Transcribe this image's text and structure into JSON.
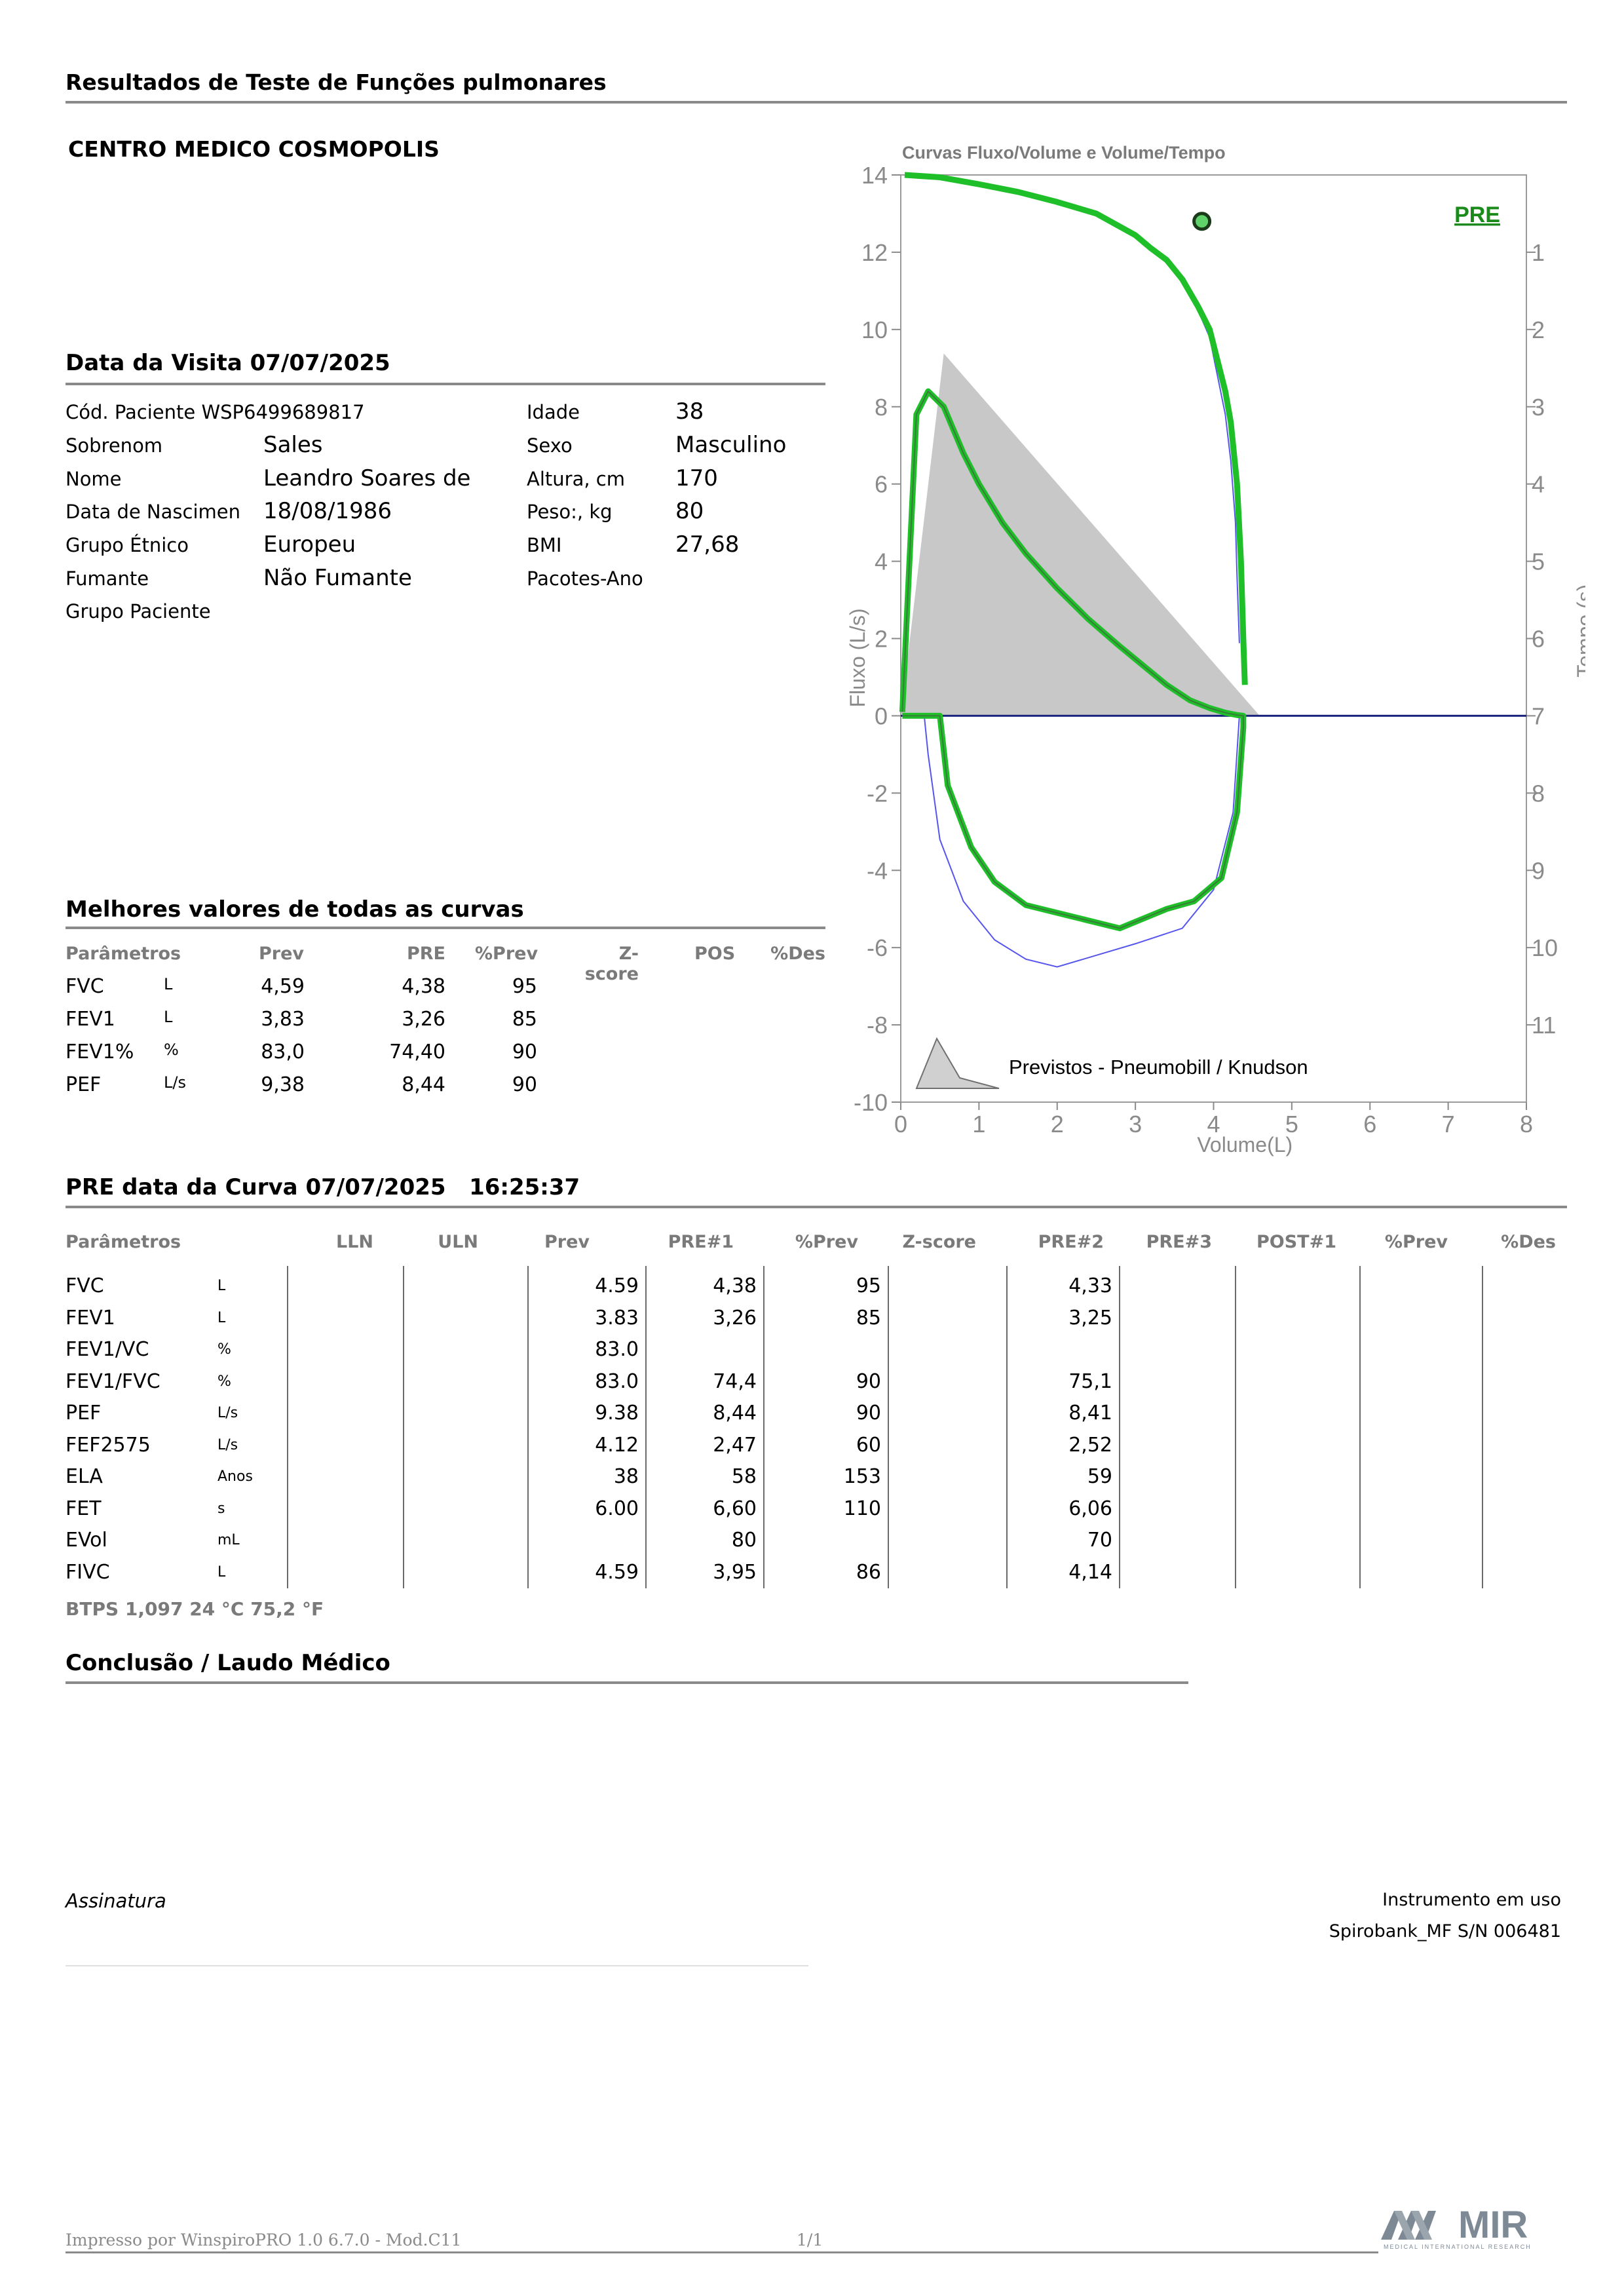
{
  "report_title": "Resultados de Teste de Funções pulmonares",
  "clinic_name": "CENTRO MEDICO COSMOPOLIS",
  "visit": {
    "title": "Data da Visita 07/07/2025"
  },
  "patient": {
    "left": [
      {
        "label": "Cód. Paciente WSP6499689817",
        "value": ""
      },
      {
        "label": "Sobrenom",
        "value": "Sales"
      },
      {
        "label": "Nome",
        "value": "Leandro Soares de"
      },
      {
        "label": "Data de Nascimen",
        "value": "18/08/1986"
      },
      {
        "label": "Grupo Étnico",
        "value": "Europeu"
      },
      {
        "label": "Fumante",
        "value": "Não Fumante"
      },
      {
        "label": "Grupo Paciente",
        "value": ""
      }
    ],
    "right": [
      {
        "label": "Idade",
        "value": "38"
      },
      {
        "label": "Sexo",
        "value": "Masculino"
      },
      {
        "label": "Altura, cm",
        "value": "170"
      },
      {
        "label": "Peso:, kg",
        "value": "80"
      },
      {
        "label": "BMI",
        "value": "27,68"
      },
      {
        "label": "Pacotes-Ano",
        "value": ""
      }
    ]
  },
  "best": {
    "title": "Melhores valores de todas as curvas",
    "headers": [
      "Parâmetros",
      "Prev",
      "PRE",
      "%Prev",
      "Z-score",
      "POS",
      "%Des"
    ],
    "rows": [
      {
        "param": "FVC",
        "unit": "L",
        "prev": "4,59",
        "pre": "4,38",
        "pprev": "95"
      },
      {
        "param": "FEV1",
        "unit": "L",
        "prev": "3,83",
        "pre": "3,26",
        "pprev": "85"
      },
      {
        "param": "FEV1%",
        "unit": "%",
        "prev": "83,0",
        "pre": "74,40",
        "pprev": "90"
      },
      {
        "param": "PEF",
        "unit": "L/s",
        "prev": "9,38",
        "pre": "8,44",
        "pprev": "90"
      }
    ]
  },
  "curve": {
    "title": "PRE data da Curva 07/07/2025",
    "time": "16:25:37",
    "headers": [
      "Parâmetros",
      "LLN",
      "ULN",
      "Prev",
      "PRE#1",
      "%Prev",
      "Z-score",
      "PRE#2",
      "PRE#3",
      "POST#1",
      "%Prev",
      "%Des"
    ],
    "rows": [
      {
        "param": "FVC",
        "unit": "L",
        "prev": "4.59",
        "pre1": "4,38",
        "pprev": "95",
        "pre2": "4,33"
      },
      {
        "param": "FEV1",
        "unit": "L",
        "prev": "3.83",
        "pre1": "3,26",
        "pprev": "85",
        "pre2": "3,25"
      },
      {
        "param": "FEV1/VC",
        "unit": "%",
        "prev": "83.0",
        "pre1": "",
        "pprev": "",
        "pre2": ""
      },
      {
        "param": "FEV1/FVC",
        "unit": "%",
        "prev": "83.0",
        "pre1": "74,4",
        "pprev": "90",
        "pre2": "75,1"
      },
      {
        "param": "PEF",
        "unit": "L/s",
        "prev": "9.38",
        "pre1": "8,44",
        "pprev": "90",
        "pre2": "8,41"
      },
      {
        "param": "FEF2575",
        "unit": "L/s",
        "prev": "4.12",
        "pre1": "2,47",
        "pprev": "60",
        "pre2": "2,52"
      },
      {
        "param": "ELA",
        "unit": "Anos",
        "prev": "38",
        "pre1": "58",
        "pprev": "153",
        "pre2": "59"
      },
      {
        "param": "FET",
        "unit": "s",
        "prev": "6.00",
        "pre1": "6,60",
        "pprev": "110",
        "pre2": "6,06"
      },
      {
        "param": "EVol",
        "unit": "mL",
        "prev": "",
        "pre1": "80",
        "pprev": "",
        "pre2": "70"
      },
      {
        "param": "FIVC",
        "unit": "L",
        "prev": "4.59",
        "pre1": "3,95",
        "pprev": "86",
        "pre2": "4,14"
      }
    ],
    "btps": "BTPS  1,097  24 °C  75,2 °F"
  },
  "conclusion": {
    "title": "Conclusão / Laudo Médico"
  },
  "signature": {
    "label": "Assinatura"
  },
  "instrument": {
    "label": "Instrumento em uso",
    "value": "Spirobank_MF S/N 006481"
  },
  "footer": {
    "printed_by": "Impresso por WinspiroPRO 1.0 6.7.0 - Mod.C11",
    "page": "1/1",
    "logo_text": "MIR",
    "logo_sub": "MEDICAL INTERNATIONAL RESEARCH"
  },
  "chart_data": {
    "type": "line",
    "title": "Curvas Fluxo/Volume e Volume/Tempo",
    "xlabel": "Volume(L)",
    "ylabel": "Fluxo (L/s)",
    "y2label": "Tempo (s)",
    "xlim": [
      0,
      8
    ],
    "ylim": [
      -10,
      14
    ],
    "xticks": [
      "0",
      "1",
      "2",
      "3",
      "4",
      "5",
      "6",
      "7",
      "8"
    ],
    "yticks": [
      "-10",
      "-8",
      "-6",
      "-4",
      "-2",
      "0",
      "2",
      "4",
      "6",
      "8",
      "10",
      "12",
      "14"
    ],
    "y2ticks": [
      "1",
      "2",
      "3",
      "4",
      "5",
      "6",
      "7",
      "8",
      "9",
      "10",
      "11"
    ],
    "y2lim": [
      0,
      12
    ],
    "grid": false,
    "tag": "PRE",
    "legend": "Previstos - Pneumobill / Knudson",
    "colors": {
      "pre": "#1fbf2a",
      "prev_fill": "#c8c8c8",
      "blue": "#5555ee",
      "baseline": "#1a237e"
    },
    "series": [
      {
        "name": "Previstos - Pneumobill / Knudson",
        "x": [
          0,
          0.55,
          4.59,
          0
        ],
        "y": [
          0,
          9.38,
          0,
          0
        ]
      },
      {
        "name": "PRE",
        "x": [
          0.02,
          0.2,
          0.35,
          0.55,
          0.8,
          1.0,
          1.3,
          1.6,
          2.0,
          2.4,
          2.8,
          3.1,
          3.4,
          3.7,
          3.95,
          4.15,
          4.3,
          4.38,
          4.38,
          4.3,
          4.1,
          3.75,
          3.4,
          2.8,
          2.2,
          1.6,
          1.2,
          0.9,
          0.6,
          0.5,
          0.02
        ],
        "y": [
          0.1,
          7.8,
          8.4,
          8.0,
          6.8,
          6.0,
          5.0,
          4.2,
          3.3,
          2.5,
          1.8,
          1.3,
          0.8,
          0.4,
          0.2,
          0.08,
          0.02,
          0,
          -0.3,
          -2.5,
          -4.2,
          -4.8,
          -5.0,
          -5.5,
          -5.2,
          -4.9,
          -4.3,
          -3.4,
          -1.8,
          0,
          0
        ]
      },
      {
        "name": "Volume/Tempo PRE",
        "x": [
          0.05,
          0.5,
          1.0,
          1.5,
          2.0,
          2.5,
          3.0,
          3.2,
          3.4,
          3.6,
          3.8,
          3.95,
          4.05,
          4.15,
          4.22,
          4.3,
          4.35,
          4.38,
          4.4
        ],
        "t": [
          0.0,
          0.03,
          0.12,
          0.22,
          0.35,
          0.5,
          0.78,
          0.95,
          1.1,
          1.35,
          1.7,
          2.0,
          2.4,
          2.8,
          3.2,
          4.0,
          5.0,
          6.0,
          6.6
        ]
      },
      {
        "name": "Volume/Tempo PRE#2",
        "x": [
          0.05,
          0.5,
          1.0,
          1.5,
          2.0,
          2.5,
          3.0,
          3.2,
          3.4,
          3.6,
          3.8,
          3.95,
          4.05,
          4.15,
          4.22,
          4.28,
          4.3,
          4.33
        ],
        "t": [
          0.0,
          0.03,
          0.12,
          0.22,
          0.35,
          0.5,
          0.78,
          0.95,
          1.1,
          1.35,
          1.75,
          2.1,
          2.6,
          3.1,
          3.7,
          4.5,
          5.2,
          6.06
        ]
      },
      {
        "name": "Inspiração PRE#2",
        "x": [
          4.33,
          4.25,
          4.0,
          3.6,
          3.0,
          2.5,
          2.0,
          1.6,
          1.2,
          0.8,
          0.5,
          0.35,
          0.3
        ],
        "y": [
          0,
          -2.5,
          -4.5,
          -5.5,
          -5.9,
          -6.2,
          -6.5,
          -6.3,
          -5.8,
          -4.8,
          -3.2,
          -1.0,
          0
        ]
      }
    ],
    "marker": {
      "x": 3.85,
      "t": 0.6
    }
  }
}
